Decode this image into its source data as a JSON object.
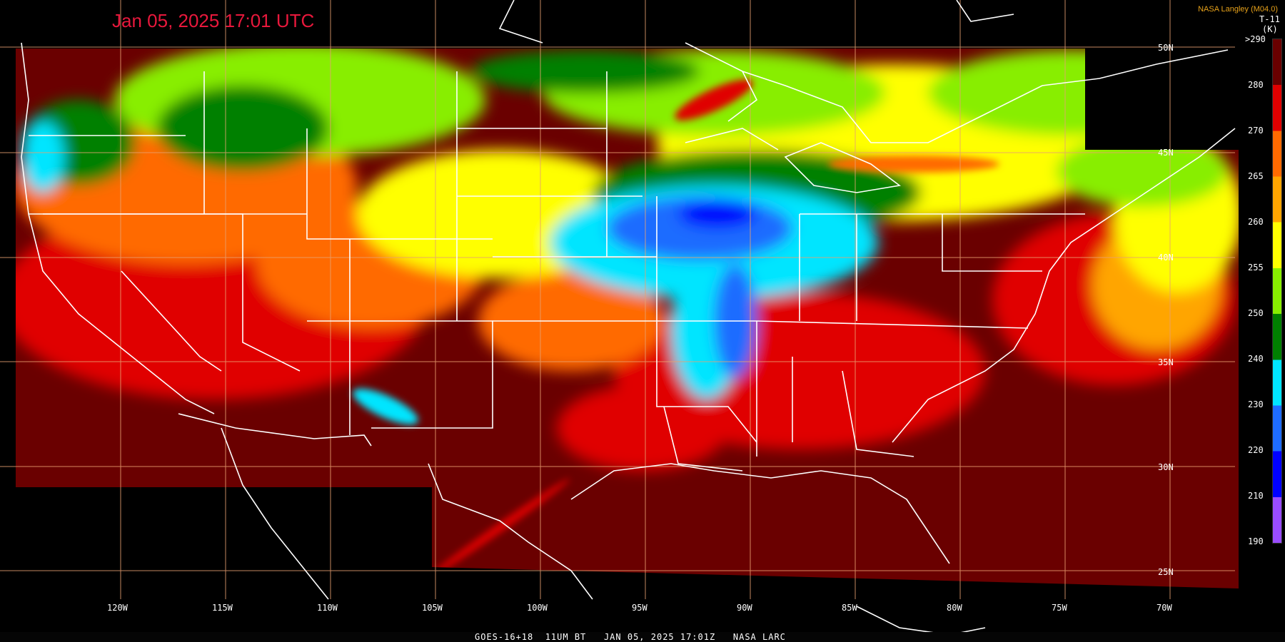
{
  "title": "Jan 05, 2025 17:01 UTC",
  "credit": "NASA Langley (M04.0)",
  "colorbar": {
    "header": [
      "T-11",
      "(K)"
    ],
    "top_label": ">290",
    "ticks": [
      "280",
      "270",
      "265",
      "260",
      "255",
      "250",
      "240",
      "230",
      "220",
      "210",
      "190"
    ],
    "colors": [
      "#6a0000",
      "#e00000",
      "#ff6a00",
      "#ffa500",
      "#ffff00",
      "#88ee00",
      "#008000",
      "#00e5ff",
      "#1e6cff",
      "#0000ff",
      "#9a4cff"
    ]
  },
  "footer": "GOES-16+18  11UM BT   JAN 05, 2025 17:01Z   NASA LARC",
  "longitude_labels": [
    "120W",
    "115W",
    "110W",
    "105W",
    "100W",
    "95W",
    "90W",
    "85W",
    "80W",
    "75W",
    "70W"
  ],
  "latitude_labels": [
    "50N",
    "45N",
    "40N",
    "35N",
    "30N",
    "25N"
  ],
  "legend_colors": {
    "warm": "#6a0000",
    "cold": "#0000ff",
    "grid": "#e8a070",
    "borders": "#ffffff"
  }
}
